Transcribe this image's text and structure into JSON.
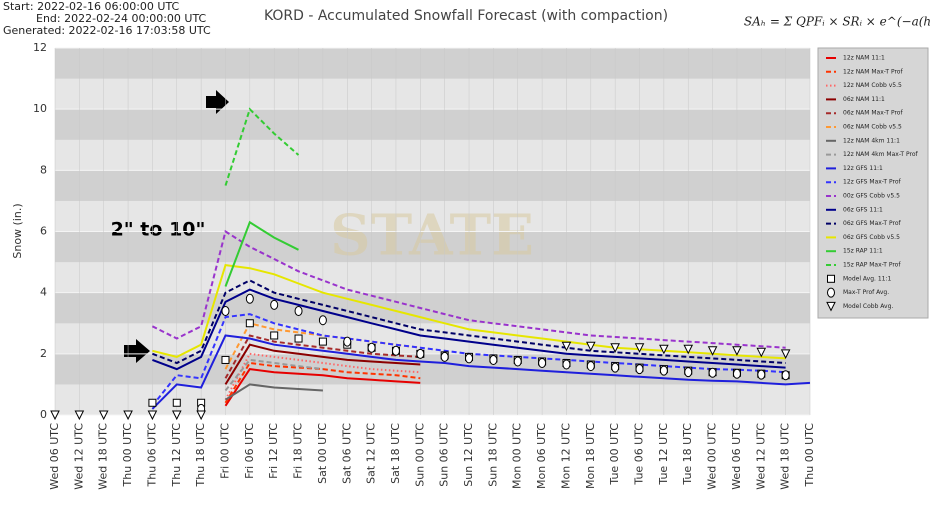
{
  "chart_data": {
    "type": "line",
    "header_lines": [
      "Start: 2022-02-16 06:00:00 UTC",
      "End: 2022-02-24 00:00:00 UTC",
      "Generated: 2022-02-16 17:03:58 UTC"
    ],
    "title": "KORD - Accumulated Snowfall Forecast (with compaction)",
    "formula": "SAₕ = Σ QPFᵢ × SRᵢ × e^(−a(h−i)^½)",
    "watermark": "STATE",
    "annotation": "2\" to 10\"",
    "y_label": "Snow (in.)",
    "ylim": [
      0,
      12
    ],
    "yticks": [
      0,
      2,
      4,
      6,
      8,
      10,
      12
    ],
    "grid": true,
    "legend": "right",
    "categories": [
      "Wed 06 UTC",
      "Wed 12 UTC",
      "Wed 18 UTC",
      "Thu 00 UTC",
      "Thu 06 UTC",
      "Thu 12 UTC",
      "Thu 18 UTC",
      "Fri 00 UTC",
      "Fri 06 UTC",
      "Fri 12 UTC",
      "Fri 18 UTC",
      "Sat 00 UTC",
      "Sat 06 UTC",
      "Sat 12 UTC",
      "Sat 18 UTC",
      "Sun 00 UTC",
      "Sun 06 UTC",
      "Sun 12 UTC",
      "Sun 18 UTC",
      "Mon 00 UTC",
      "Mon 06 UTC",
      "Mon 12 UTC",
      "Mon 18 UTC",
      "Tue 00 UTC",
      "Tue 06 UTC",
      "Tue 12 UTC",
      "Tue 18 UTC",
      "Wed 00 UTC",
      "Wed 06 UTC",
      "Wed 12 UTC",
      "Wed 18 UTC",
      "Thu 00 UTC"
    ],
    "series": [
      {
        "name": "12z NAM 11:1",
        "color": "#e60000",
        "dash": "solid",
        "values": [
          null,
          null,
          null,
          null,
          null,
          null,
          null,
          0.3,
          1.5,
          1.4,
          1.35,
          1.3,
          1.2,
          1.15,
          1.1,
          1.05,
          null,
          null,
          null,
          null,
          null,
          null,
          null,
          null,
          null,
          null,
          null,
          null,
          null,
          null,
          null,
          null
        ]
      },
      {
        "name": "12z NAM Max-T Prof",
        "color": "#ff3300",
        "dash": "dashed",
        "values": [
          null,
          null,
          null,
          null,
          null,
          null,
          null,
          0.4,
          1.7,
          1.6,
          1.55,
          1.5,
          1.4,
          1.35,
          1.3,
          1.2,
          null,
          null,
          null,
          null,
          null,
          null,
          null,
          null,
          null,
          null,
          null,
          null,
          null,
          null,
          null,
          null
        ]
      },
      {
        "name": "12z NAM Cobb v5.5",
        "color": "#ff6666",
        "dash": "dotted",
        "values": [
          null,
          null,
          null,
          null,
          null,
          null,
          null,
          0.5,
          2.0,
          1.9,
          1.8,
          1.7,
          1.6,
          1.5,
          1.45,
          1.4,
          null,
          null,
          null,
          null,
          null,
          null,
          null,
          null,
          null,
          null,
          null,
          null,
          null,
          null,
          null,
          null
        ]
      },
      {
        "name": "06z NAM 11:1",
        "color": "#8b0000",
        "dash": "solid",
        "values": [
          null,
          null,
          null,
          null,
          null,
          null,
          null,
          1.0,
          2.3,
          2.1,
          2.0,
          1.9,
          1.8,
          1.75,
          1.7,
          1.65,
          null,
          null,
          null,
          null,
          null,
          null,
          null,
          null,
          null,
          null,
          null,
          null,
          null,
          null,
          null,
          null
        ]
      },
      {
        "name": "06z NAM Max-T Prof",
        "color": "#a52a2a",
        "dash": "dashed",
        "values": [
          null,
          null,
          null,
          null,
          null,
          null,
          null,
          1.2,
          2.6,
          2.4,
          2.3,
          2.2,
          2.1,
          2.0,
          1.95,
          1.9,
          null,
          null,
          null,
          null,
          null,
          null,
          null,
          null,
          null,
          null,
          null,
          null,
          null,
          null,
          null,
          null
        ]
      },
      {
        "name": "06z NAM Cobb v5.5",
        "color": "#ff9933",
        "dash": "dashed",
        "values": [
          null,
          null,
          null,
          null,
          null,
          null,
          null,
          1.5,
          3.0,
          2.8,
          2.7,
          2.6,
          2.5,
          2.4,
          2.3,
          2.2,
          null,
          null,
          null,
          null,
          null,
          null,
          null,
          null,
          null,
          null,
          null,
          null,
          null,
          null,
          null,
          null
        ]
      },
      {
        "name": "12z NAM 4km 11:1",
        "color": "#666666",
        "dash": "solid",
        "values": [
          null,
          null,
          null,
          null,
          null,
          null,
          null,
          0.5,
          1.0,
          0.9,
          0.85,
          0.8,
          null,
          null,
          null,
          null,
          null,
          null,
          null,
          null,
          null,
          null,
          null,
          null,
          null,
          null,
          null,
          null,
          null,
          null,
          null,
          null
        ]
      },
      {
        "name": "12z NAM 4km Max-T Prof",
        "color": "#999999",
        "dash": "dashed",
        "values": [
          null,
          null,
          null,
          null,
          null,
          null,
          null,
          0.8,
          1.8,
          1.7,
          1.6,
          1.5,
          null,
          null,
          null,
          null,
          null,
          null,
          null,
          null,
          null,
          null,
          null,
          null,
          null,
          null,
          null,
          null,
          null,
          null,
          null,
          null
        ]
      },
      {
        "name": "12z GFS 11:1",
        "color": "#1f1fdc",
        "dash": "solid",
        "values": [
          null,
          null,
          null,
          null,
          0.2,
          1.0,
          0.9,
          2.6,
          2.5,
          2.3,
          2.2,
          2.1,
          2.0,
          1.9,
          1.8,
          1.75,
          1.7,
          1.6,
          1.55,
          1.5,
          1.45,
          1.4,
          1.35,
          1.3,
          1.25,
          1.2,
          1.15,
          1.12,
          1.1,
          1.05,
          1.0,
          1.05
        ]
      },
      {
        "name": "12z GFS Max-T Prof",
        "color": "#3333ff",
        "dash": "dashed",
        "values": [
          null,
          null,
          null,
          null,
          0.3,
          1.3,
          1.2,
          3.2,
          3.3,
          3.0,
          2.8,
          2.6,
          2.5,
          2.4,
          2.3,
          2.2,
          2.1,
          2.0,
          1.95,
          1.9,
          1.85,
          1.8,
          1.75,
          1.7,
          1.65,
          1.6,
          1.55,
          1.5,
          1.48,
          1.45,
          1.4,
          null
        ]
      },
      {
        "name": "00z GFS Cobb v5.5",
        "color": "#9933cc",
        "dash": "dashed",
        "values": [
          null,
          null,
          null,
          null,
          2.9,
          2.5,
          2.9,
          6.0,
          5.5,
          5.1,
          4.7,
          4.4,
          4.1,
          3.9,
          3.7,
          3.5,
          3.3,
          3.1,
          3.0,
          2.9,
          2.8,
          2.7,
          2.6,
          2.55,
          2.5,
          2.45,
          2.4,
          2.35,
          2.3,
          2.25,
          2.2,
          null
        ]
      },
      {
        "name": "06z GFS 11:1",
        "color": "#00008b",
        "dash": "solid",
        "values": [
          null,
          null,
          null,
          null,
          1.8,
          1.5,
          1.9,
          3.7,
          4.1,
          3.8,
          3.6,
          3.4,
          3.2,
          3.0,
          2.8,
          2.6,
          2.5,
          2.4,
          2.3,
          2.2,
          2.1,
          2.0,
          1.95,
          1.9,
          1.85,
          1.8,
          1.75,
          1.7,
          1.65,
          1.6,
          1.55,
          null
        ]
      },
      {
        "name": "06z GFS Max-T Prof",
        "color": "#000066",
        "dash": "dashed",
        "values": [
          null,
          null,
          null,
          null,
          2.0,
          1.7,
          2.1,
          4.0,
          4.4,
          4.0,
          3.8,
          3.6,
          3.4,
          3.2,
          3.0,
          2.8,
          2.7,
          2.6,
          2.5,
          2.4,
          2.3,
          2.2,
          2.1,
          2.05,
          2.0,
          1.95,
          1.9,
          1.85,
          1.8,
          1.75,
          1.7,
          null
        ]
      },
      {
        "name": "06z GFS Cobb v5.5",
        "color": "#e6e600",
        "dash": "solid",
        "values": [
          null,
          null,
          null,
          null,
          2.1,
          1.9,
          2.3,
          4.9,
          4.8,
          4.6,
          4.3,
          4.0,
          3.8,
          3.6,
          3.4,
          3.2,
          3.0,
          2.8,
          2.7,
          2.6,
          2.5,
          2.4,
          2.3,
          2.2,
          2.15,
          2.1,
          2.05,
          2.0,
          1.95,
          1.9,
          1.85,
          null
        ]
      },
      {
        "name": "15z RAP 11:1",
        "color": "#33cc33",
        "dash": "solid",
        "values": [
          null,
          null,
          null,
          null,
          null,
          null,
          null,
          4.2,
          6.3,
          5.8,
          5.4,
          null,
          null,
          null,
          null,
          null,
          null,
          null,
          null,
          null,
          null,
          null,
          null,
          null,
          null,
          null,
          null,
          null,
          null,
          null,
          null,
          null
        ]
      },
      {
        "name": "15z RAP Max-T Prof",
        "color": "#33cc33",
        "dash": "dashed",
        "values": [
          null,
          null,
          null,
          null,
          null,
          null,
          null,
          7.5,
          10.0,
          9.2,
          8.5,
          null,
          null,
          null,
          null,
          null,
          null,
          null,
          null,
          null,
          null,
          null,
          null,
          null,
          null,
          null,
          null,
          null,
          null,
          null,
          null,
          null
        ]
      },
      {
        "name": "Model Avg. 11:1",
        "color": "#000000",
        "marker": "square",
        "values": [
          null,
          null,
          null,
          null,
          0.4,
          0.4,
          0.4,
          1.8,
          3.0,
          2.6,
          2.5,
          2.4,
          2.3,
          2.2,
          2.1,
          2.0,
          1.95,
          1.9,
          1.85,
          1.8,
          1.75,
          1.7,
          1.65,
          1.6,
          1.55,
          1.5,
          1.45,
          1.4,
          1.38,
          1.35,
          1.3,
          null
        ]
      },
      {
        "name": "Max-T Prof Avg.",
        "color": "#000000",
        "marker": "circle",
        "values": [
          null,
          null,
          null,
          null,
          null,
          null,
          0.2,
          3.4,
          3.8,
          3.6,
          3.4,
          3.1,
          2.4,
          2.2,
          2.1,
          2.0,
          1.9,
          1.85,
          1.8,
          1.75,
          1.7,
          1.65,
          1.6,
          1.55,
          1.5,
          1.45,
          1.4,
          1.38,
          1.35,
          1.32,
          1.3,
          null
        ]
      },
      {
        "name": "Model Cobb Avg.",
        "color": "#000000",
        "marker": "triangle",
        "values": [
          0,
          0,
          0,
          0,
          0,
          0,
          0,
          null,
          null,
          null,
          null,
          null,
          null,
          null,
          null,
          null,
          null,
          null,
          null,
          null,
          null,
          2.25,
          2.25,
          2.2,
          2.2,
          2.15,
          2.15,
          2.1,
          2.1,
          2.05,
          2.0,
          null
        ]
      }
    ]
  }
}
